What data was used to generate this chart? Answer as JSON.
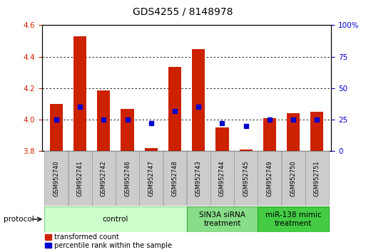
{
  "title": "GDS4255 / 8148978",
  "samples": [
    "GSM952740",
    "GSM952741",
    "GSM952742",
    "GSM952746",
    "GSM952747",
    "GSM952748",
    "GSM952743",
    "GSM952744",
    "GSM952745",
    "GSM952749",
    "GSM952750",
    "GSM952751"
  ],
  "transformed_counts": [
    4.1,
    4.53,
    4.185,
    4.07,
    3.82,
    4.335,
    4.45,
    3.95,
    3.81,
    4.01,
    4.04,
    4.05
  ],
  "percentile_ranks": [
    25,
    35,
    25,
    25,
    22,
    32,
    35,
    22,
    20,
    25,
    25,
    25
  ],
  "ylim_left": [
    3.8,
    4.6
  ],
  "ylim_right": [
    0,
    100
  ],
  "yticks_left": [
    3.8,
    4.0,
    4.2,
    4.4,
    4.6
  ],
  "yticks_right": [
    0,
    25,
    50,
    75,
    100
  ],
  "grid_ticks": [
    4.0,
    4.2,
    4.4
  ],
  "bar_color": "#cc2200",
  "dot_color": "#0000cc",
  "bar_bottom": 3.8,
  "groups": [
    {
      "label": "control",
      "start": 0,
      "end": 5,
      "color": "#ccffcc",
      "edge_color": "#88cc88"
    },
    {
      "label": "SIN3A siRNA\ntreatment",
      "start": 6,
      "end": 8,
      "color": "#88dd88",
      "edge_color": "#44aa44"
    },
    {
      "label": "miR-138 mimic\ntreatment",
      "start": 9,
      "end": 11,
      "color": "#44cc44",
      "edge_color": "#22aa22"
    }
  ],
  "title_fontsize": 10,
  "tick_label_color_left": "#cc2200",
  "tick_label_color_right": "#0000cc",
  "legend_items": [
    "transformed count",
    "percentile rank within the sample"
  ],
  "protocol_label": "protocol"
}
